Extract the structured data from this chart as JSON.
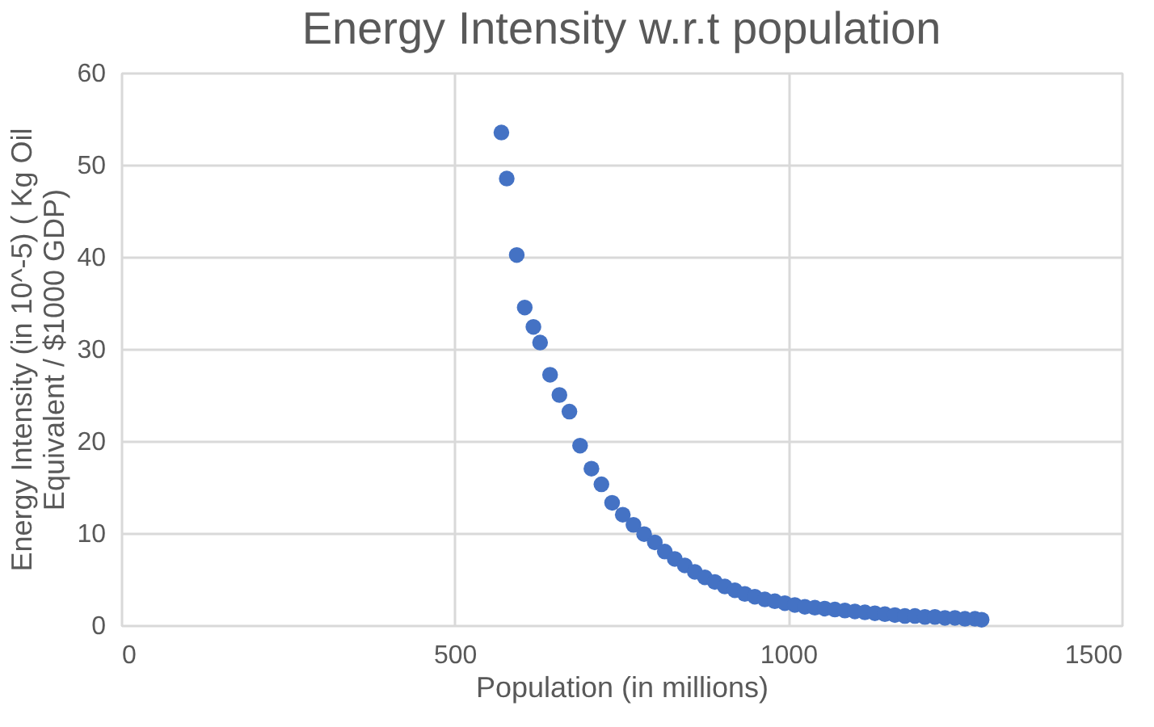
{
  "chart_data": {
    "type": "scatter",
    "title": "Energy Intensity w.r.t population",
    "xlabel": "Population (in millions)",
    "ylabel": "Energy Intensity (in 10^-5) ( Kg Oil\nEquivalent / $1000 GDP)",
    "x": [
      570,
      578,
      593,
      605,
      618,
      628,
      643,
      657,
      672,
      688,
      705,
      720,
      736,
      752,
      768,
      784,
      800,
      815,
      830,
      845,
      860,
      875,
      890,
      905,
      920,
      935,
      950,
      965,
      980,
      995,
      1010,
      1025,
      1040,
      1055,
      1070,
      1085,
      1100,
      1115,
      1130,
      1145,
      1160,
      1175,
      1190,
      1205,
      1220,
      1235,
      1250,
      1265,
      1280,
      1290
    ],
    "series": [
      {
        "color": "#4472c4",
        "values": [
          53.5,
          48.5,
          40.2,
          34.5,
          32.4,
          30.7,
          27.2,
          25.0,
          23.2,
          19.5,
          17.0,
          15.3,
          13.3,
          12.0,
          10.9,
          9.9,
          9.0,
          8.0,
          7.2,
          6.5,
          5.8,
          5.2,
          4.7,
          4.2,
          3.8,
          3.4,
          3.1,
          2.8,
          2.6,
          2.4,
          2.2,
          2.0,
          1.9,
          1.8,
          1.7,
          1.6,
          1.5,
          1.4,
          1.3,
          1.2,
          1.1,
          1.0,
          1.0,
          0.9,
          0.9,
          0.8,
          0.8,
          0.7,
          0.7,
          0.6
        ]
      }
    ],
    "xlim": [
      0,
      1500
    ],
    "xticks": [
      0,
      500,
      1000,
      1500
    ],
    "ylim": [
      0,
      60
    ],
    "yticks": [
      0,
      10,
      20,
      30,
      40,
      50,
      60
    ],
    "grid": true,
    "marker": "circle",
    "legend": false
  }
}
